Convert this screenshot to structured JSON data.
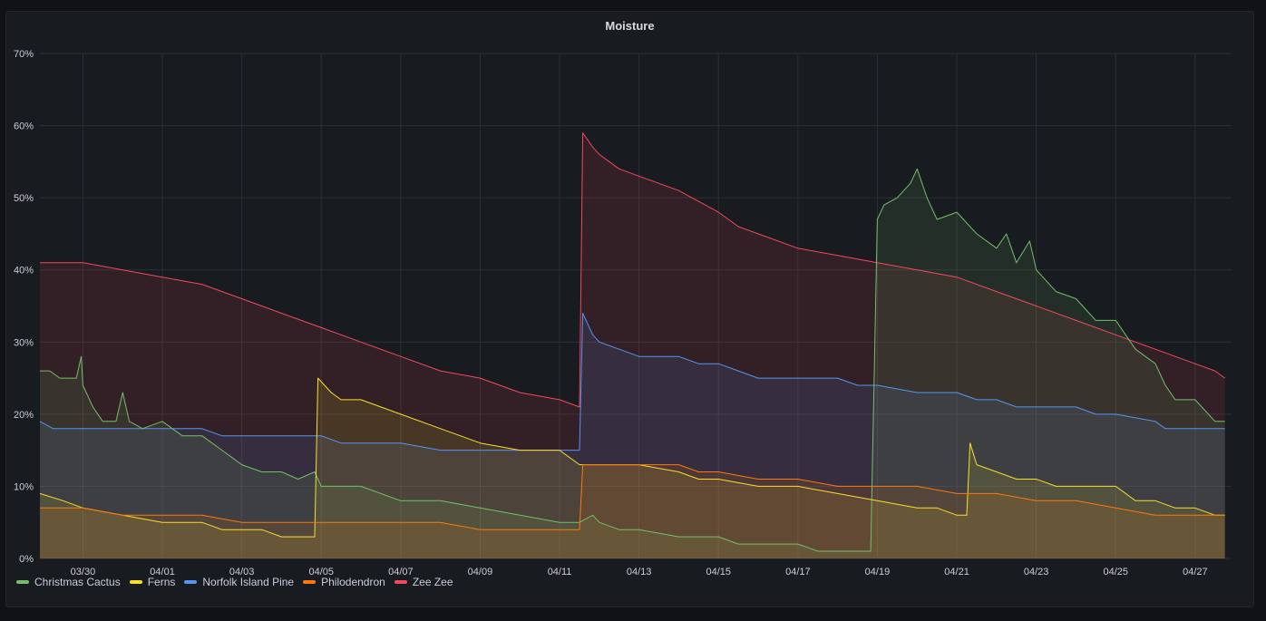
{
  "panel": {
    "title": "Moisture"
  },
  "chart_data": {
    "type": "area",
    "title": "Moisture",
    "x_unit": "date",
    "y_unit": "percent",
    "ylim": [
      0,
      70
    ],
    "y_ticks": [
      "0%",
      "10%",
      "20%",
      "30%",
      "40%",
      "50%",
      "60%",
      "70%"
    ],
    "x_ticks": [
      "03/30",
      "04/01",
      "04/03",
      "04/05",
      "04/07",
      "04/09",
      "04/11",
      "04/13",
      "04/15",
      "04/17",
      "04/19",
      "04/21",
      "04/23",
      "04/25",
      "04/27"
    ],
    "x_range": [
      "03/28 22:00",
      "04/27 22:00"
    ],
    "grid": true,
    "legend_position": "bottom-left",
    "series": [
      {
        "name": "Christmas Cactus",
        "color": "#73bf69",
        "points": [
          [
            "03/28 22:00",
            26
          ],
          [
            "03/29 04:00",
            26
          ],
          [
            "03/29 10:00",
            25
          ],
          [
            "03/29 20:00",
            25
          ],
          [
            "03/29 23:00",
            28
          ],
          [
            "03/30 00:00",
            24
          ],
          [
            "03/30 06:00",
            21
          ],
          [
            "03/30 12:00",
            19
          ],
          [
            "03/30 20:00",
            19
          ],
          [
            "03/31 00:00",
            23
          ],
          [
            "03/31 04:00",
            19
          ],
          [
            "03/31 12:00",
            18
          ],
          [
            "04/01 00:00",
            19
          ],
          [
            "04/01 12:00",
            17
          ],
          [
            "04/02 00:00",
            17
          ],
          [
            "04/02 12:00",
            15
          ],
          [
            "04/03 00:00",
            13
          ],
          [
            "04/03 12:00",
            12
          ],
          [
            "04/04 00:00",
            12
          ],
          [
            "04/04 10:00",
            11
          ],
          [
            "04/04 20:00",
            12
          ],
          [
            "04/05 00:00",
            10
          ],
          [
            "04/06 00:00",
            10
          ],
          [
            "04/07 00:00",
            8
          ],
          [
            "04/08 00:00",
            8
          ],
          [
            "04/09 00:00",
            7
          ],
          [
            "04/10 00:00",
            6
          ],
          [
            "04/11 00:00",
            5
          ],
          [
            "04/11 12:00",
            5
          ],
          [
            "04/11 20:00",
            6
          ],
          [
            "04/12 00:00",
            5
          ],
          [
            "04/12 12:00",
            4
          ],
          [
            "04/13 00:00",
            4
          ],
          [
            "04/14 00:00",
            3
          ],
          [
            "04/15 00:00",
            3
          ],
          [
            "04/15 12:00",
            2
          ],
          [
            "04/16 00:00",
            2
          ],
          [
            "04/17 00:00",
            2
          ],
          [
            "04/17 12:00",
            1
          ],
          [
            "04/18 00:00",
            1
          ],
          [
            "04/18 12:00",
            1
          ],
          [
            "04/18 20:00",
            1
          ],
          [
            "04/19 00:00",
            47
          ],
          [
            "04/19 04:00",
            49
          ],
          [
            "04/19 12:00",
            50
          ],
          [
            "04/19 20:00",
            52
          ],
          [
            "04/20 00:00",
            54
          ],
          [
            "04/20 06:00",
            50
          ],
          [
            "04/20 12:00",
            47
          ],
          [
            "04/21 00:00",
            48
          ],
          [
            "04/21 12:00",
            45
          ],
          [
            "04/22 00:00",
            43
          ],
          [
            "04/22 06:00",
            45
          ],
          [
            "04/22 12:00",
            41
          ],
          [
            "04/22 20:00",
            44
          ],
          [
            "04/23 00:00",
            40
          ],
          [
            "04/23 12:00",
            37
          ],
          [
            "04/24 00:00",
            36
          ],
          [
            "04/24 12:00",
            33
          ],
          [
            "04/25 00:00",
            33
          ],
          [
            "04/25 06:00",
            31
          ],
          [
            "04/25 12:00",
            29
          ],
          [
            "04/26 00:00",
            27
          ],
          [
            "04/26 06:00",
            24
          ],
          [
            "04/26 12:00",
            22
          ],
          [
            "04/27 00:00",
            22
          ],
          [
            "04/27 12:00",
            19
          ],
          [
            "04/27 18:00",
            19
          ]
        ]
      },
      {
        "name": "Ferns",
        "color": "#fade2a",
        "points": [
          [
            "03/28 22:00",
            9
          ],
          [
            "03/29 12:00",
            8
          ],
          [
            "03/30 00:00",
            7
          ],
          [
            "03/31 00:00",
            6
          ],
          [
            "04/01 00:00",
            5
          ],
          [
            "04/02 00:00",
            5
          ],
          [
            "04/02 12:00",
            4
          ],
          [
            "04/03 00:00",
            4
          ],
          [
            "04/03 12:00",
            4
          ],
          [
            "04/04 00:00",
            3
          ],
          [
            "04/04 20:00",
            3
          ],
          [
            "04/04 22:00",
            25
          ],
          [
            "04/05 06:00",
            23
          ],
          [
            "04/05 12:00",
            22
          ],
          [
            "04/06 00:00",
            22
          ],
          [
            "04/06 12:00",
            21
          ],
          [
            "04/07 00:00",
            20
          ],
          [
            "04/08 00:00",
            18
          ],
          [
            "04/08 12:00",
            17
          ],
          [
            "04/09 00:00",
            16
          ],
          [
            "04/10 00:00",
            15
          ],
          [
            "04/11 00:00",
            15
          ],
          [
            "04/11 12:00",
            13
          ],
          [
            "04/12 00:00",
            13
          ],
          [
            "04/13 00:00",
            13
          ],
          [
            "04/14 00:00",
            12
          ],
          [
            "04/14 12:00",
            11
          ],
          [
            "04/15 00:00",
            11
          ],
          [
            "04/16 00:00",
            10
          ],
          [
            "04/17 00:00",
            10
          ],
          [
            "04/18 00:00",
            9
          ],
          [
            "04/19 00:00",
            8
          ],
          [
            "04/20 00:00",
            7
          ],
          [
            "04/20 12:00",
            7
          ],
          [
            "04/21 00:00",
            6
          ],
          [
            "04/21 06:00",
            6
          ],
          [
            "04/21 08:00",
            16
          ],
          [
            "04/21 12:00",
            13
          ],
          [
            "04/22 00:00",
            12
          ],
          [
            "04/22 12:00",
            11
          ],
          [
            "04/23 00:00",
            11
          ],
          [
            "04/23 12:00",
            10
          ],
          [
            "04/24 00:00",
            10
          ],
          [
            "04/25 00:00",
            10
          ],
          [
            "04/25 12:00",
            8
          ],
          [
            "04/26 00:00",
            8
          ],
          [
            "04/26 12:00",
            7
          ],
          [
            "04/27 00:00",
            7
          ],
          [
            "04/27 12:00",
            6
          ],
          [
            "04/27 18:00",
            6
          ]
        ]
      },
      {
        "name": "Norfolk Island Pine",
        "color": "#5794f2",
        "points": [
          [
            "03/28 22:00",
            19
          ],
          [
            "03/29 06:00",
            18
          ],
          [
            "03/30 00:00",
            18
          ],
          [
            "03/31 00:00",
            18
          ],
          [
            "04/01 00:00",
            18
          ],
          [
            "04/02 00:00",
            18
          ],
          [
            "04/02 12:00",
            17
          ],
          [
            "04/03 00:00",
            17
          ],
          [
            "04/04 00:00",
            17
          ],
          [
            "04/05 00:00",
            17
          ],
          [
            "04/05 12:00",
            16
          ],
          [
            "04/06 00:00",
            16
          ],
          [
            "04/07 00:00",
            16
          ],
          [
            "04/08 00:00",
            15
          ],
          [
            "04/09 00:00",
            15
          ],
          [
            "04/10 00:00",
            15
          ],
          [
            "04/11 00:00",
            15
          ],
          [
            "04/11 12:00",
            15
          ],
          [
            "04/11 14:00",
            34
          ],
          [
            "04/11 20:00",
            31
          ],
          [
            "04/12 00:00",
            30
          ],
          [
            "04/12 12:00",
            29
          ],
          [
            "04/13 00:00",
            28
          ],
          [
            "04/14 00:00",
            28
          ],
          [
            "04/14 12:00",
            27
          ],
          [
            "04/15 00:00",
            27
          ],
          [
            "04/15 12:00",
            26
          ],
          [
            "04/16 00:00",
            25
          ],
          [
            "04/17 00:00",
            25
          ],
          [
            "04/18 00:00",
            25
          ],
          [
            "04/18 12:00",
            24
          ],
          [
            "04/19 00:00",
            24
          ],
          [
            "04/20 00:00",
            23
          ],
          [
            "04/21 00:00",
            23
          ],
          [
            "04/21 12:00",
            22
          ],
          [
            "04/22 00:00",
            22
          ],
          [
            "04/22 12:00",
            21
          ],
          [
            "04/23 00:00",
            21
          ],
          [
            "04/24 00:00",
            21
          ],
          [
            "04/24 12:00",
            20
          ],
          [
            "04/25 00:00",
            20
          ],
          [
            "04/26 00:00",
            19
          ],
          [
            "04/26 06:00",
            18
          ],
          [
            "04/27 00:00",
            18
          ],
          [
            "04/27 18:00",
            18
          ]
        ]
      },
      {
        "name": "Philodendron",
        "color": "#ff780a",
        "points": [
          [
            "03/28 22:00",
            7
          ],
          [
            "03/30 00:00",
            7
          ],
          [
            "03/31 00:00",
            6
          ],
          [
            "04/01 00:00",
            6
          ],
          [
            "04/02 00:00",
            6
          ],
          [
            "04/03 00:00",
            5
          ],
          [
            "04/04 00:00",
            5
          ],
          [
            "04/05 00:00",
            5
          ],
          [
            "04/06 00:00",
            5
          ],
          [
            "04/07 00:00",
            5
          ],
          [
            "04/08 00:00",
            5
          ],
          [
            "04/09 00:00",
            4
          ],
          [
            "04/10 00:00",
            4
          ],
          [
            "04/11 00:00",
            4
          ],
          [
            "04/11 12:00",
            4
          ],
          [
            "04/11 14:00",
            13
          ],
          [
            "04/12 00:00",
            13
          ],
          [
            "04/13 00:00",
            13
          ],
          [
            "04/14 00:00",
            13
          ],
          [
            "04/14 12:00",
            12
          ],
          [
            "04/15 00:00",
            12
          ],
          [
            "04/16 00:00",
            11
          ],
          [
            "04/17 00:00",
            11
          ],
          [
            "04/18 00:00",
            10
          ],
          [
            "04/19 00:00",
            10
          ],
          [
            "04/20 00:00",
            10
          ],
          [
            "04/21 00:00",
            9
          ],
          [
            "04/22 00:00",
            9
          ],
          [
            "04/23 00:00",
            8
          ],
          [
            "04/24 00:00",
            8
          ],
          [
            "04/25 00:00",
            7
          ],
          [
            "04/26 00:00",
            6
          ],
          [
            "04/27 00:00",
            6
          ],
          [
            "04/27 18:00",
            6
          ]
        ]
      },
      {
        "name": "Zee Zee",
        "color": "#f2495c",
        "points": [
          [
            "03/28 22:00",
            41
          ],
          [
            "03/29 12:00",
            41
          ],
          [
            "03/30 00:00",
            41
          ],
          [
            "03/31 00:00",
            40
          ],
          [
            "04/01 00:00",
            39
          ],
          [
            "04/02 00:00",
            38
          ],
          [
            "04/03 00:00",
            36
          ],
          [
            "04/04 00:00",
            34
          ],
          [
            "04/05 00:00",
            32
          ],
          [
            "04/06 00:00",
            30
          ],
          [
            "04/07 00:00",
            28
          ],
          [
            "04/08 00:00",
            26
          ],
          [
            "04/09 00:00",
            25
          ],
          [
            "04/10 00:00",
            23
          ],
          [
            "04/11 00:00",
            22
          ],
          [
            "04/11 12:00",
            21
          ],
          [
            "04/11 14:00",
            59
          ],
          [
            "04/11 20:00",
            57
          ],
          [
            "04/12 00:00",
            56
          ],
          [
            "04/12 12:00",
            54
          ],
          [
            "04/13 00:00",
            53
          ],
          [
            "04/14 00:00",
            51
          ],
          [
            "04/15 00:00",
            48
          ],
          [
            "04/15 12:00",
            46
          ],
          [
            "04/16 00:00",
            45
          ],
          [
            "04/17 00:00",
            43
          ],
          [
            "04/18 00:00",
            42
          ],
          [
            "04/19 00:00",
            41
          ],
          [
            "04/20 00:00",
            40
          ],
          [
            "04/21 00:00",
            39
          ],
          [
            "04/22 00:00",
            37
          ],
          [
            "04/23 00:00",
            35
          ],
          [
            "04/24 00:00",
            33
          ],
          [
            "04/25 00:00",
            31
          ],
          [
            "04/25 12:00",
            30
          ],
          [
            "04/26 00:00",
            29
          ],
          [
            "04/26 12:00",
            28
          ],
          [
            "04/27 00:00",
            27
          ],
          [
            "04/27 12:00",
            26
          ],
          [
            "04/27 18:00",
            25
          ]
        ]
      }
    ]
  }
}
